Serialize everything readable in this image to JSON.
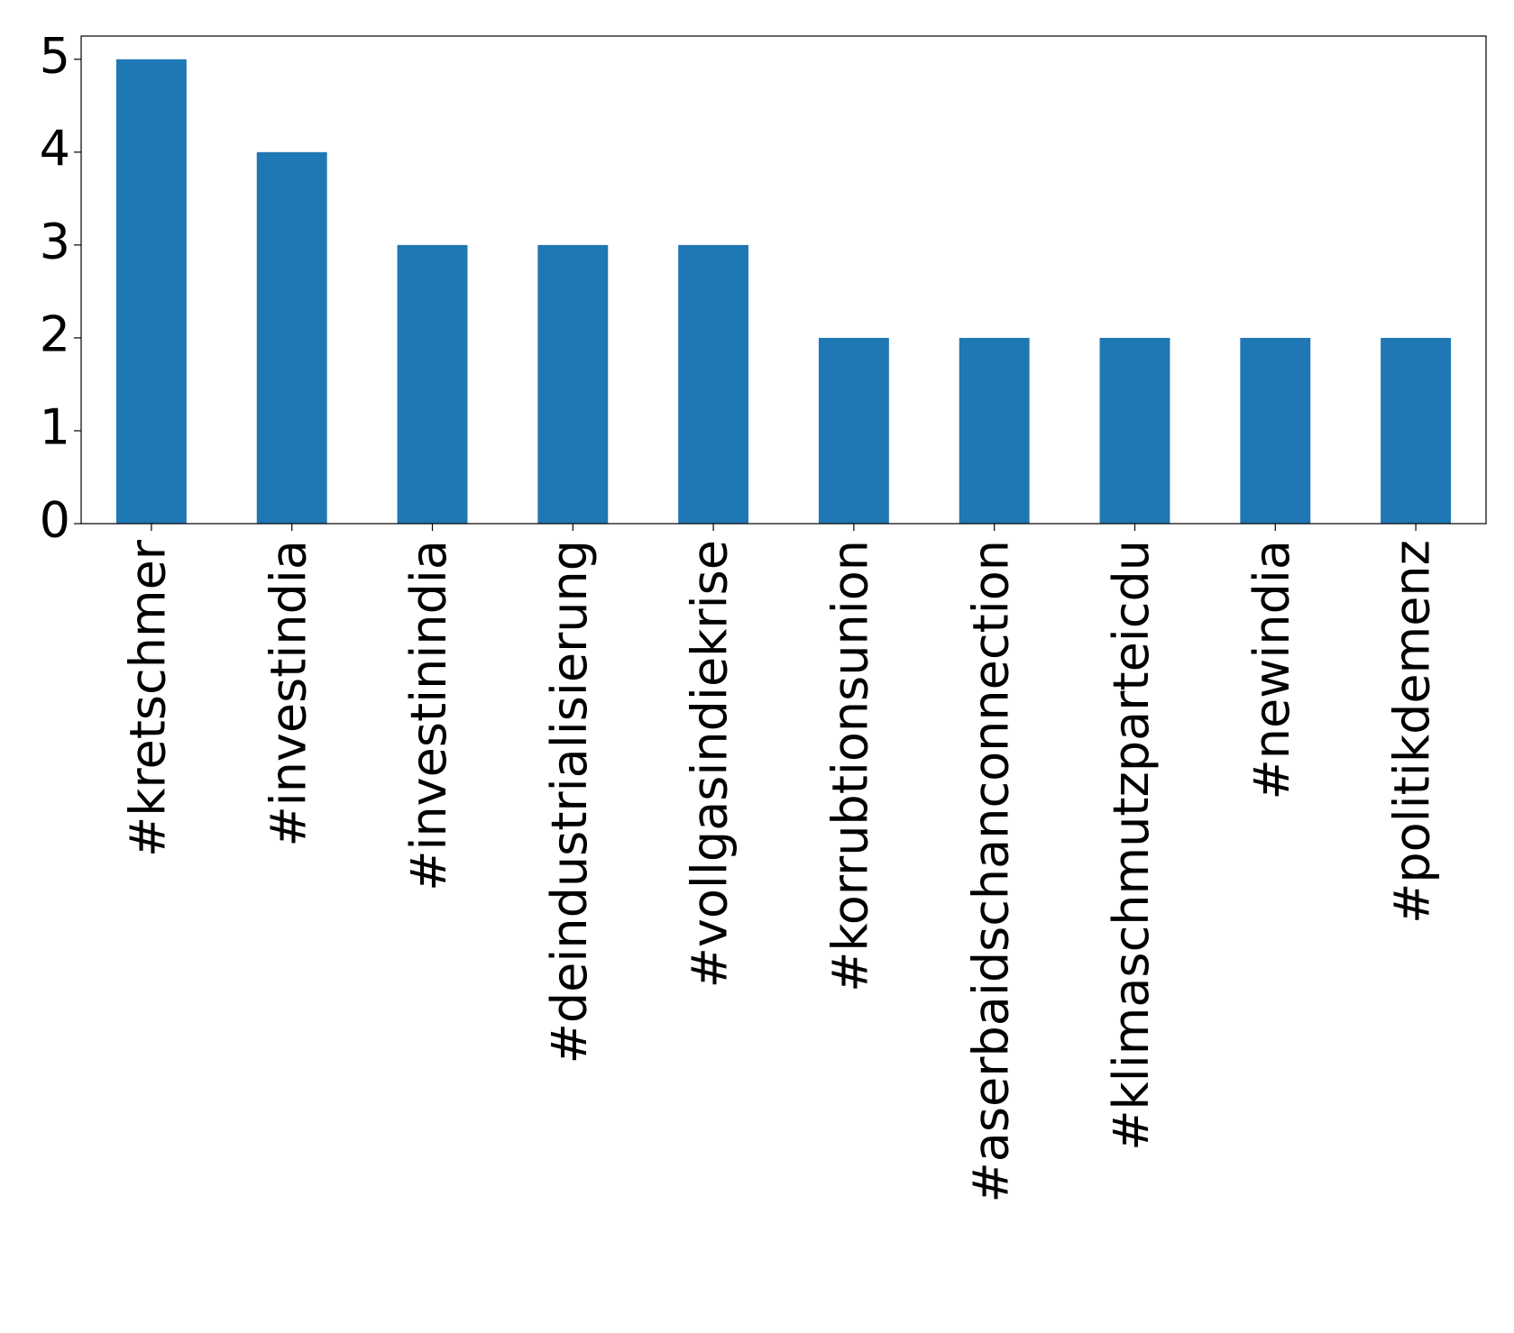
{
  "chart_data": {
    "type": "bar",
    "categories": [
      "#kretschmer",
      "#investindia",
      "#investinindia",
      "#deindustrialisierung",
      "#vollgasindiekrise",
      "#korrubtionsunion",
      "#aserbaidschanconnection",
      "#klimaschmutzparteicdu",
      "#newindia",
      "#politikdemenz"
    ],
    "values": [
      5,
      4,
      3,
      3,
      3,
      2,
      2,
      2,
      2,
      2
    ],
    "color": "#1f77b4",
    "ylim": [
      0,
      5.25
    ],
    "yticks": [
      0,
      1,
      2,
      3,
      4,
      5
    ],
    "grid": false
  }
}
